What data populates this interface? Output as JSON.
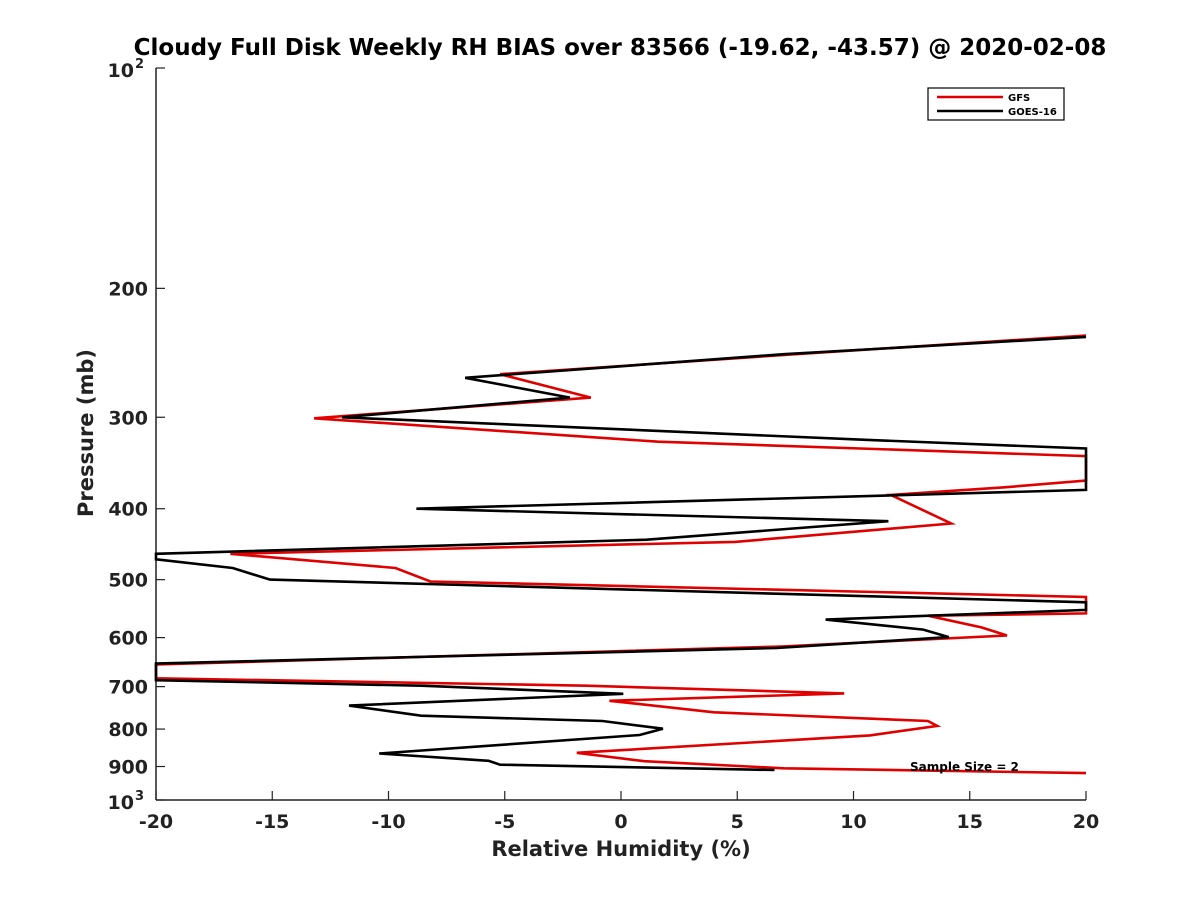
{
  "chart_data": {
    "type": "line",
    "title": "Cloudy Full Disk Weekly RH BIAS over 83566 (-19.62, -43.57) @ 2020-02-08",
    "xlabel": "Relative Humidity (%)",
    "ylabel": "Pressure (mb)",
    "xlim": [
      -20,
      20
    ],
    "ylim": [
      100,
      1000
    ],
    "y_scale": "log",
    "y_reversed": true,
    "grid": false,
    "legend_position": "top-right",
    "x_ticks": [
      "-20",
      "-15",
      "-10",
      "-5",
      "0",
      "5",
      "10",
      "15",
      "20"
    ],
    "y_ticks": [
      {
        "value": 100,
        "base": "10",
        "exp": "2"
      },
      {
        "value": 200,
        "label": "200"
      },
      {
        "value": 300,
        "label": "300"
      },
      {
        "value": 400,
        "label": "400"
      },
      {
        "value": 500,
        "label": "500"
      },
      {
        "value": 600,
        "label": "600"
      },
      {
        "value": 700,
        "label": "700"
      },
      {
        "value": 800,
        "label": "800"
      },
      {
        "value": 900,
        "label": "900"
      },
      {
        "value": 1000,
        "base": "10",
        "exp": "3"
      }
    ],
    "annotation": "Sample Size = 2",
    "series": [
      {
        "name": "GFS",
        "color": "#e00000",
        "points": [
          [
            20,
            232
          ],
          [
            7.5,
            246
          ],
          [
            -5.2,
            262
          ],
          [
            -1.3,
            282
          ],
          [
            -13.2,
            301
          ],
          [
            1.6,
            324
          ],
          [
            20,
            339
          ],
          [
            20,
            366
          ],
          [
            16.5,
            374
          ],
          [
            11.6,
            383
          ],
          [
            14.2,
            419
          ],
          [
            4.9,
            444
          ],
          [
            -16.8,
            461
          ],
          [
            -9.7,
            482
          ],
          [
            -8.2,
            503
          ],
          [
            20,
            528
          ],
          [
            20,
            556
          ],
          [
            13.2,
            560
          ],
          [
            15.5,
            581
          ],
          [
            16.6,
            596
          ],
          [
            6.9,
            617
          ],
          [
            -20,
            653
          ],
          [
            -20,
            682
          ],
          [
            -1.5,
            698
          ],
          [
            9.6,
            715
          ],
          [
            -0.5,
            732
          ],
          [
            4,
            759
          ],
          [
            13.2,
            780
          ],
          [
            13.6,
            792
          ],
          [
            10.7,
            816
          ],
          [
            -1.9,
            862
          ],
          [
            1,
            885
          ],
          [
            7,
            905
          ],
          [
            20,
            919
          ]
        ]
      },
      {
        "name": "GOES-16",
        "color": "#000000",
        "points": [
          [
            20,
            233
          ],
          [
            7,
            246
          ],
          [
            -6.7,
            265
          ],
          [
            -2.2,
            282
          ],
          [
            -12,
            300
          ],
          [
            10.5,
            322
          ],
          [
            20,
            331
          ],
          [
            20,
            377
          ],
          [
            -8.8,
            400
          ],
          [
            11.5,
            416
          ],
          [
            1.1,
            441
          ],
          [
            -20,
            461
          ],
          [
            -20,
            469
          ],
          [
            -16.7,
            482
          ],
          [
            -15.1,
            500
          ],
          [
            20,
            537
          ],
          [
            20,
            550
          ],
          [
            8.8,
            567
          ],
          [
            13,
            585
          ],
          [
            14.1,
            599
          ],
          [
            6.7,
            620
          ],
          [
            -20,
            651
          ],
          [
            -20,
            686
          ],
          [
            -8.6,
            698
          ],
          [
            0.1,
            716
          ],
          [
            -11.7,
            743
          ],
          [
            -8.6,
            767
          ],
          [
            -0.8,
            780
          ],
          [
            1.8,
            799
          ],
          [
            0.8,
            815
          ],
          [
            -10.4,
            864
          ],
          [
            -5.7,
            884
          ],
          [
            -5.2,
            895
          ],
          [
            6.6,
            910
          ]
        ]
      }
    ]
  }
}
